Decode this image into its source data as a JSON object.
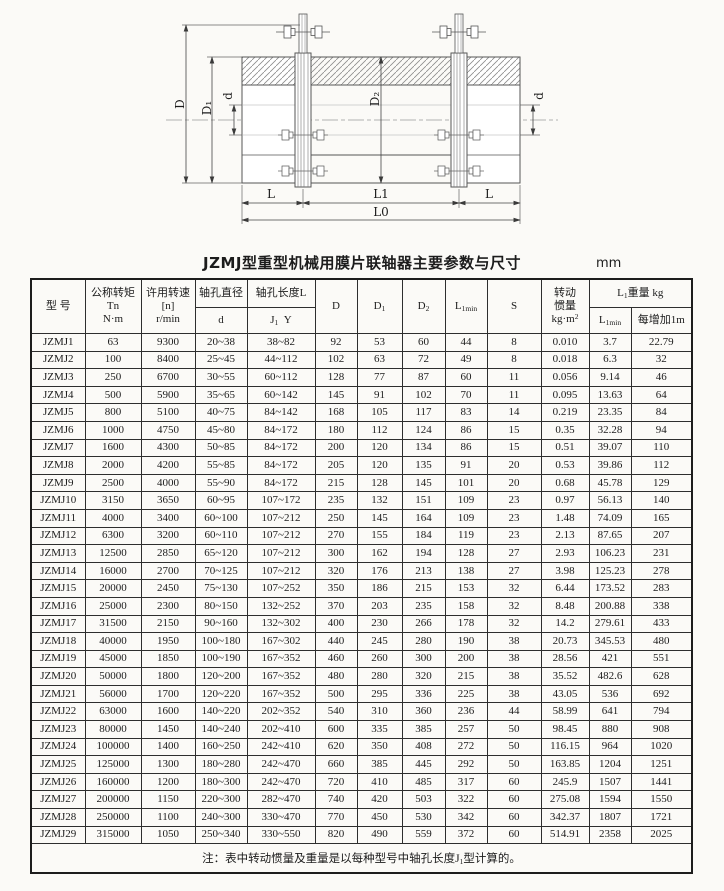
{
  "page": {
    "title": "JZMJ型重型机械用膜片联轴器主要参数与尺寸",
    "unit": "mm"
  },
  "drawing": {
    "labels": {
      "D": "D",
      "D1": "D₁",
      "d_left": "d",
      "D2": "D₂",
      "d_right": "d",
      "L_left": "L",
      "L1": "L1",
      "L_right": "L",
      "L0": "L0"
    }
  },
  "table": {
    "header": {
      "model": "型 号",
      "torque_l1": "公称转矩",
      "torque_l2": "Tn",
      "torque_l3": "N·m",
      "speed_l1": "许用转速",
      "speed_l2": "[n]",
      "speed_l3": "r/min",
      "bore_dia": "轴孔直径",
      "bore_dia_d": "d",
      "bore_len": "轴孔长度L",
      "bore_len_j": "J",
      "bore_len_j_sub": "1",
      "bore_len_y": "Y",
      "D": "D",
      "D1_base": "D",
      "D1_sub": "1",
      "D2_base": "D",
      "D2_sub": "2",
      "L1min_base": "L",
      "L1min_sub": "1min",
      "S": "S",
      "inertia_l1": "转动",
      "inertia_l2": "惯量",
      "inertia_unit": "kg·m",
      "inertia_sup": "2",
      "weight_base": "L",
      "weight_sub": "1",
      "weight_rest": "重量 kg",
      "w_l1min_base": "L",
      "w_l1min_sub": "1min",
      "w_per_m": "每增加1m"
    },
    "rows": [
      [
        "JZMJ1",
        "63",
        "9300",
        "20~38",
        "38~82",
        "92",
        "53",
        "60",
        "44",
        "8",
        "0.010",
        "3.7",
        "22.79"
      ],
      [
        "JZMJ2",
        "100",
        "8400",
        "25~45",
        "44~112",
        "102",
        "63",
        "72",
        "49",
        "8",
        "0.018",
        "6.3",
        "32"
      ],
      [
        "JZMJ3",
        "250",
        "6700",
        "30~55",
        "60~112",
        "128",
        "77",
        "87",
        "60",
        "11",
        "0.056",
        "9.14",
        "46"
      ],
      [
        "JZMJ4",
        "500",
        "5900",
        "35~65",
        "60~142",
        "145",
        "91",
        "102",
        "70",
        "11",
        "0.095",
        "13.63",
        "64"
      ],
      [
        "JZMJ5",
        "800",
        "5100",
        "40~75",
        "84~142",
        "168",
        "105",
        "117",
        "83",
        "14",
        "0.219",
        "23.35",
        "84"
      ],
      [
        "JZMJ6",
        "1000",
        "4750",
        "45~80",
        "84~172",
        "180",
        "112",
        "124",
        "86",
        "15",
        "0.35",
        "32.28",
        "94"
      ],
      [
        "JZMJ7",
        "1600",
        "4300",
        "50~85",
        "84~172",
        "200",
        "120",
        "134",
        "86",
        "15",
        "0.51",
        "39.07",
        "110"
      ],
      [
        "JZMJ8",
        "2000",
        "4200",
        "55~85",
        "84~172",
        "205",
        "120",
        "135",
        "91",
        "20",
        "0.53",
        "39.86",
        "112"
      ],
      [
        "JZMJ9",
        "2500",
        "4000",
        "55~90",
        "84~172",
        "215",
        "128",
        "145",
        "101",
        "20",
        "0.68",
        "45.78",
        "129"
      ],
      [
        "JZMJ10",
        "3150",
        "3650",
        "60~95",
        "107~172",
        "235",
        "132",
        "151",
        "109",
        "23",
        "0.97",
        "56.13",
        "140"
      ],
      [
        "JZMJ11",
        "4000",
        "3400",
        "60~100",
        "107~212",
        "250",
        "145",
        "164",
        "109",
        "23",
        "1.48",
        "74.09",
        "165"
      ],
      [
        "JZMJ12",
        "6300",
        "3200",
        "60~110",
        "107~212",
        "270",
        "155",
        "184",
        "119",
        "23",
        "2.13",
        "87.65",
        "207"
      ],
      [
        "JZMJ13",
        "12500",
        "2850",
        "65~120",
        "107~212",
        "300",
        "162",
        "194",
        "128",
        "27",
        "2.93",
        "106.23",
        "231"
      ],
      [
        "JZMJ14",
        "16000",
        "2700",
        "70~125",
        "107~212",
        "320",
        "176",
        "213",
        "138",
        "27",
        "3.98",
        "125.23",
        "278"
      ],
      [
        "JZMJ15",
        "20000",
        "2450",
        "75~130",
        "107~252",
        "350",
        "186",
        "215",
        "153",
        "32",
        "6.44",
        "173.52",
        "283"
      ],
      [
        "JZMJ16",
        "25000",
        "2300",
        "80~150",
        "132~252",
        "370",
        "203",
        "235",
        "158",
        "32",
        "8.48",
        "200.88",
        "338"
      ],
      [
        "JZMJ17",
        "31500",
        "2150",
        "90~160",
        "132~302",
        "400",
        "230",
        "266",
        "178",
        "32",
        "14.2",
        "279.61",
        "433"
      ],
      [
        "JZMJ18",
        "40000",
        "1950",
        "100~180",
        "167~302",
        "440",
        "245",
        "280",
        "190",
        "38",
        "20.73",
        "345.53",
        "480"
      ],
      [
        "JZMJ19",
        "45000",
        "1850",
        "100~190",
        "167~352",
        "460",
        "260",
        "300",
        "200",
        "38",
        "28.56",
        "421",
        "551"
      ],
      [
        "JZMJ20",
        "50000",
        "1800",
        "120~200",
        "167~352",
        "480",
        "280",
        "320",
        "215",
        "38",
        "35.52",
        "482.6",
        "628"
      ],
      [
        "JZMJ21",
        "56000",
        "1700",
        "120~220",
        "167~352",
        "500",
        "295",
        "336",
        "225",
        "38",
        "43.05",
        "536",
        "692"
      ],
      [
        "JZMJ22",
        "63000",
        "1600",
        "140~220",
        "202~352",
        "540",
        "310",
        "360",
        "236",
        "44",
        "58.99",
        "641",
        "794"
      ],
      [
        "JZMJ23",
        "80000",
        "1450",
        "140~240",
        "202~410",
        "600",
        "335",
        "385",
        "257",
        "50",
        "98.45",
        "880",
        "908"
      ],
      [
        "JZMJ24",
        "100000",
        "1400",
        "160~250",
        "242~410",
        "620",
        "350",
        "408",
        "272",
        "50",
        "116.15",
        "964",
        "1020"
      ],
      [
        "JZMJ25",
        "125000",
        "1300",
        "180~280",
        "242~470",
        "660",
        "385",
        "445",
        "292",
        "50",
        "163.85",
        "1204",
        "1251"
      ],
      [
        "JZMJ26",
        "160000",
        "1200",
        "180~300",
        "242~470",
        "720",
        "410",
        "485",
        "317",
        "60",
        "245.9",
        "1507",
        "1441"
      ],
      [
        "JZMJ27",
        "200000",
        "1150",
        "220~300",
        "282~470",
        "740",
        "420",
        "503",
        "322",
        "60",
        "275.08",
        "1594",
        "1550"
      ],
      [
        "JZMJ28",
        "250000",
        "1100",
        "240~300",
        "330~470",
        "770",
        "450",
        "530",
        "342",
        "60",
        "342.37",
        "1807",
        "1721"
      ],
      [
        "JZMJ29",
        "315000",
        "1050",
        "250~340",
        "330~550",
        "820",
        "490",
        "559",
        "372",
        "60",
        "514.91",
        "2358",
        "2025"
      ]
    ],
    "note_pre": "注：表中转动惯量及重量是以每种型号中轴孔长度J",
    "note_sub": "1",
    "note_post": "型计算的。"
  }
}
